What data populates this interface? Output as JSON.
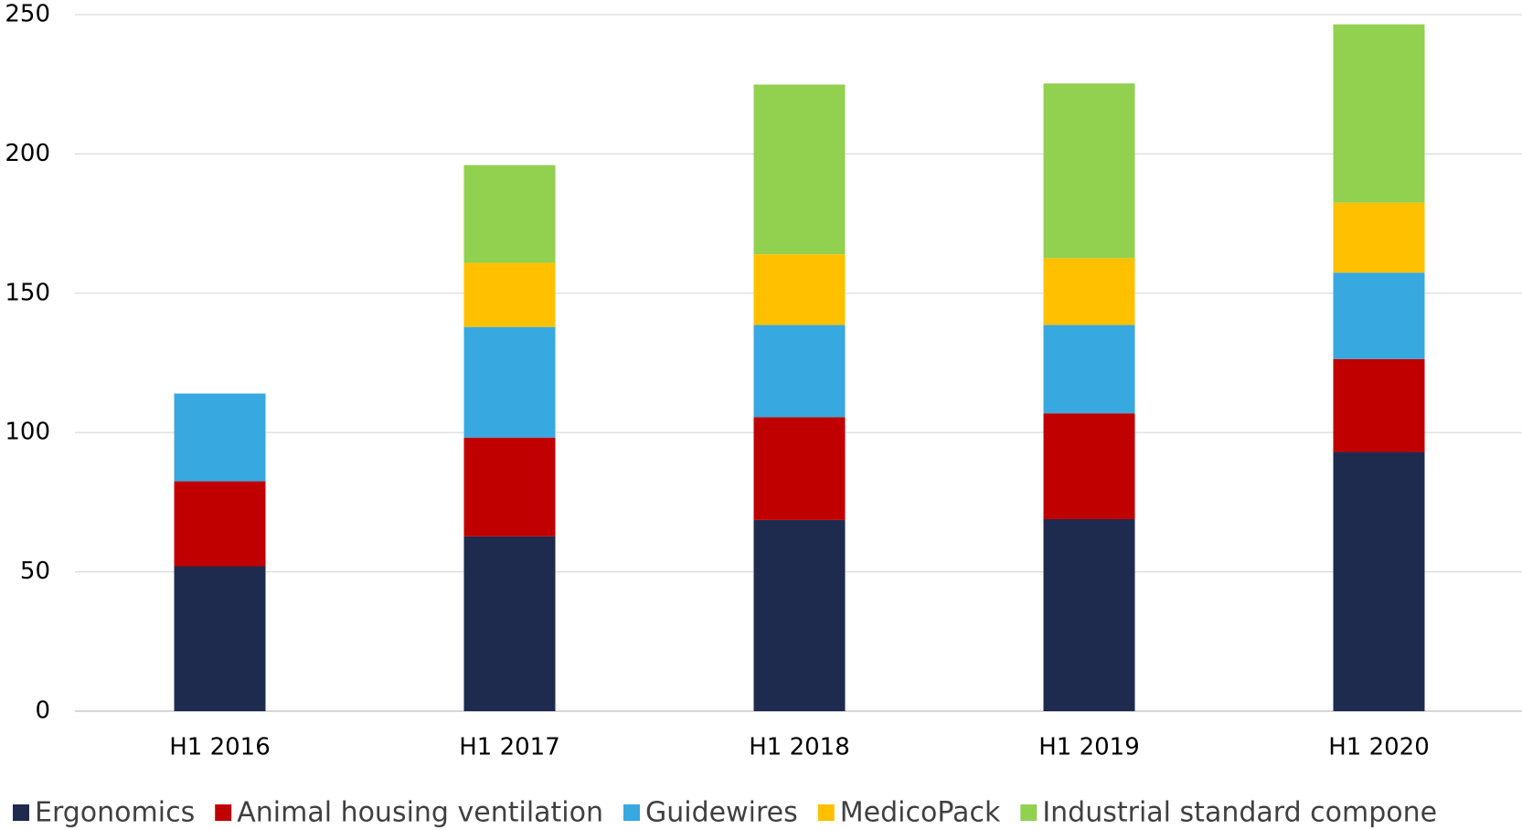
{
  "chart_data": {
    "type": "bar",
    "stacked": true,
    "categories": [
      "H1 2016",
      "H1 2017",
      "H1 2018",
      "H1 2019",
      "H1 2020"
    ],
    "series": [
      {
        "name": "Ergonomics",
        "color": "#1f2a4f",
        "values": [
          52,
          62.7,
          68.6,
          68.9,
          93
        ]
      },
      {
        "name": "Animal housing ventilation",
        "color": "#c00000",
        "values": [
          30.5,
          35.5,
          36.9,
          38,
          33.4
        ]
      },
      {
        "name": "Guidewires",
        "color": "#38a8e0",
        "values": [
          31.5,
          39.7,
          33.1,
          31.7,
          31
        ]
      },
      {
        "name": "MedicoPack",
        "color": "#ffc000",
        "values": [
          null,
          23,
          25.4,
          24,
          25.1
        ]
      },
      {
        "name": "Industrial standard compone",
        "color": "#92d050",
        "values": [
          null,
          35.1,
          60.9,
          62.7,
          64
        ]
      }
    ],
    "ylim": [
      0,
      250
    ],
    "yticks": [
      0,
      50,
      100,
      150,
      200,
      250
    ],
    "grid": true,
    "legend": "bottom"
  }
}
